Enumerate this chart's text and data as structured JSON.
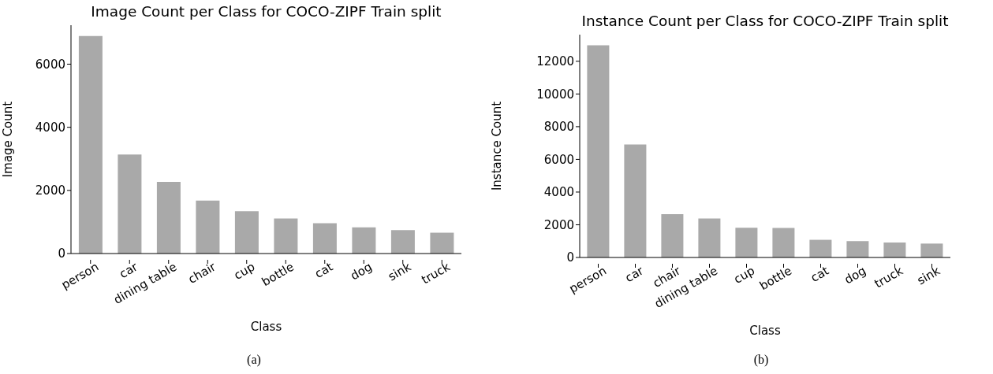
{
  "chart_data": [
    {
      "type": "bar",
      "title": "Image Count per Class for COCO-ZIPF Train split",
      "xlabel": "Class",
      "ylabel": "Image Count",
      "categories": [
        "person",
        "car",
        "dining table",
        "chair",
        "cup",
        "bottle",
        "cat",
        "dog",
        "sink",
        "truck"
      ],
      "values": [
        6890,
        3140,
        2270,
        1680,
        1340,
        1110,
        960,
        830,
        740,
        660
      ],
      "color": "#a9a9a9",
      "ylim": [
        0,
        7235
      ],
      "yticks": [
        0,
        2000,
        4000,
        6000
      ],
      "annotations": [
        "(a)"
      ]
    },
    {
      "type": "bar",
      "title": "Instance Count per Class for COCO-ZIPF Train split",
      "xlabel": "Class",
      "ylabel": "Instance Count",
      "categories": [
        "person",
        "car",
        "chair",
        "dining table",
        "cup",
        "bottle",
        "cat",
        "dog",
        "truck",
        "sink"
      ],
      "values": [
        12980,
        6910,
        2650,
        2380,
        1820,
        1810,
        1080,
        1000,
        920,
        850
      ],
      "color": "#a9a9a9",
      "ylim": [
        0,
        13630
      ],
      "yticks": [
        0,
        2000,
        4000,
        6000,
        8000,
        10000,
        12000
      ],
      "annotations": [
        "(b)"
      ]
    }
  ]
}
